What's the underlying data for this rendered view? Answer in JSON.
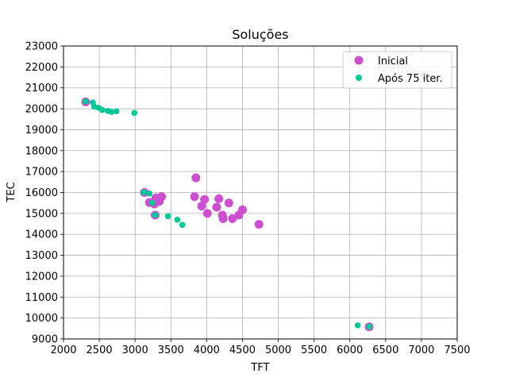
{
  "chart_data": {
    "type": "scatter",
    "title": "Soluções",
    "xlabel": "TFT",
    "ylabel": "TEC",
    "xlim": [
      2000,
      7500
    ],
    "ylim": [
      9000,
      23000
    ],
    "xticks": [
      2000,
      2500,
      3000,
      3500,
      4000,
      4500,
      5000,
      5500,
      6000,
      6500,
      7000,
      7500
    ],
    "yticks": [
      9000,
      10000,
      11000,
      12000,
      13000,
      14000,
      15000,
      16000,
      17000,
      18000,
      19000,
      20000,
      21000,
      22000,
      23000
    ],
    "grid": true,
    "legend_position": "top-right",
    "series": [
      {
        "name": "Inicial",
        "color": "#cc4fd0",
        "marker_size": "large",
        "points": [
          [
            2310,
            20330
          ],
          [
            3130,
            16000
          ],
          [
            3200,
            15520
          ],
          [
            3270,
            15450
          ],
          [
            3280,
            14920
          ],
          [
            3290,
            15740
          ],
          [
            3340,
            15580
          ],
          [
            3370,
            15800
          ],
          [
            3830,
            15800
          ],
          [
            3850,
            16700
          ],
          [
            3930,
            15350
          ],
          [
            3970,
            15670
          ],
          [
            4010,
            15000
          ],
          [
            4140,
            15300
          ],
          [
            4170,
            15700
          ],
          [
            4220,
            14920
          ],
          [
            4230,
            14750
          ],
          [
            4310,
            15500
          ],
          [
            4360,
            14750
          ],
          [
            4450,
            14920
          ],
          [
            4500,
            15170
          ],
          [
            4730,
            14480
          ],
          [
            6270,
            9580
          ]
        ]
      },
      {
        "name": "Após 75 iter.",
        "color": "#00c896",
        "marker_size": "small",
        "points": [
          [
            2310,
            20350
          ],
          [
            2410,
            20300
          ],
          [
            2430,
            20100
          ],
          [
            2490,
            20050
          ],
          [
            2540,
            19950
          ],
          [
            2620,
            19900
          ],
          [
            2670,
            19850
          ],
          [
            2740,
            19880
          ],
          [
            2990,
            19800
          ],
          [
            3120,
            16010
          ],
          [
            3200,
            15950
          ],
          [
            3240,
            15500
          ],
          [
            3280,
            14920
          ],
          [
            3460,
            14870
          ],
          [
            3590,
            14700
          ],
          [
            3660,
            14450
          ],
          [
            6110,
            9650
          ],
          [
            6270,
            9590
          ]
        ]
      }
    ]
  }
}
